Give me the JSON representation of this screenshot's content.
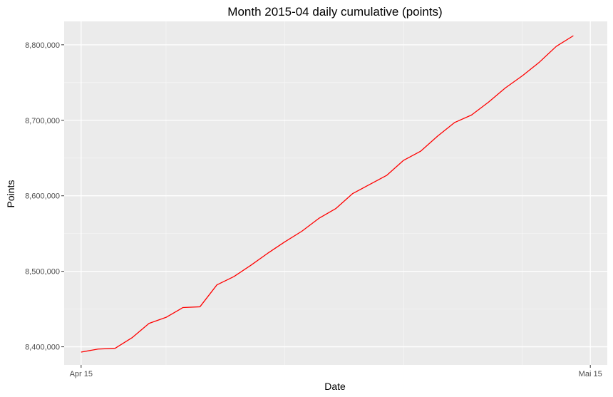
{
  "chart_data": {
    "type": "line",
    "title": "Month 2015-04 daily cumulative (points)",
    "xlabel": "Date",
    "ylabel": "Points",
    "x_type": "date",
    "xlim": [
      "2015-04-14",
      "2015-05-16"
    ],
    "ylim": [
      8376000,
      8831000
    ],
    "x_ticks": [
      {
        "value": "2015-04-15",
        "label": "Apr 15"
      },
      {
        "value": "2015-05-15",
        "label": "Mai 15"
      }
    ],
    "y_ticks": [
      {
        "value": 8400000,
        "label": "8,400,000"
      },
      {
        "value": 8500000,
        "label": "8,500,000"
      },
      {
        "value": 8600000,
        "label": "8,600,000"
      },
      {
        "value": 8700000,
        "label": "8,700,000"
      },
      {
        "value": 8800000,
        "label": "8,800,000"
      }
    ],
    "x_minor_ticks": [
      "2015-04-20",
      "2015-04-27",
      "2015-05-04",
      "2015-05-11"
    ],
    "y_minor_ticks": [
      8350000,
      8450000,
      8550000,
      8650000,
      8750000
    ],
    "grid": true,
    "background_color": "#ebebeb",
    "grid_major_color": "#ffffff",
    "grid_minor_color": "#f5f5f5",
    "series": [
      {
        "color": "#ff0000",
        "x": [
          "2015-04-15",
          "2015-04-16",
          "2015-04-17",
          "2015-04-18",
          "2015-04-19",
          "2015-04-20",
          "2015-04-21",
          "2015-04-22",
          "2015-04-23",
          "2015-04-24",
          "2015-04-25",
          "2015-04-26",
          "2015-04-27",
          "2015-04-28",
          "2015-04-29",
          "2015-04-30",
          "2015-05-01",
          "2015-05-02",
          "2015-05-03",
          "2015-05-04",
          "2015-05-05",
          "2015-05-06",
          "2015-05-07",
          "2015-05-08",
          "2015-05-09",
          "2015-05-10",
          "2015-05-11",
          "2015-05-12",
          "2015-05-13",
          "2015-05-14"
        ],
        "values": [
          8393000,
          8397000,
          8398000,
          8412000,
          8431000,
          8439000,
          8452000,
          8453000,
          8482000,
          8493000,
          8508000,
          8524000,
          8539000,
          8553000,
          8570000,
          8583000,
          8603000,
          8615000,
          8627000,
          8647000,
          8659000,
          8679000,
          8697000,
          8707000,
          8724000,
          8743000,
          8759000,
          8777000,
          8798000,
          8812000
        ]
      }
    ]
  }
}
